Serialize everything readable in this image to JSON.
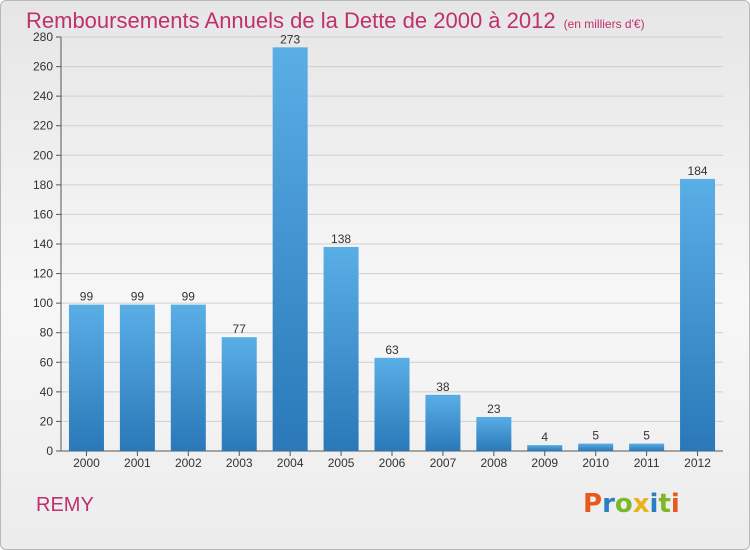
{
  "title": "Remboursements Annuels de la Dette de 2000 à 2012",
  "subtitle": "(en milliers d'€)",
  "commune": "REMY",
  "logo": {
    "letters": [
      "P",
      "r",
      "o",
      "x",
      "i",
      "t",
      "i"
    ],
    "colors": [
      "#e85a1b",
      "#2a7fc4",
      "#7db82b",
      "#e8b31b",
      "#2a7fc4",
      "#7db82b",
      "#e85a1b"
    ]
  },
  "colors": {
    "bar_top": "#5aaee6",
    "bar_bottom": "#2a78b8",
    "title": "#c0306a"
  },
  "chart_data": {
    "type": "bar",
    "title": "Remboursements Annuels de la Dette de 2000 à 2012",
    "subtitle": "(en milliers d'€)",
    "categories": [
      "2000",
      "2001",
      "2002",
      "2003",
      "2004",
      "2005",
      "2006",
      "2007",
      "2008",
      "2009",
      "2010",
      "2011",
      "2012"
    ],
    "values": [
      99,
      99,
      99,
      77,
      273,
      138,
      63,
      38,
      23,
      4,
      5,
      5,
      184
    ],
    "ylim": [
      0,
      280
    ],
    "yticks": [
      0,
      20,
      40,
      60,
      80,
      100,
      120,
      140,
      160,
      180,
      200,
      220,
      240,
      260,
      280
    ],
    "grid": true,
    "xlabel": "",
    "ylabel": ""
  }
}
